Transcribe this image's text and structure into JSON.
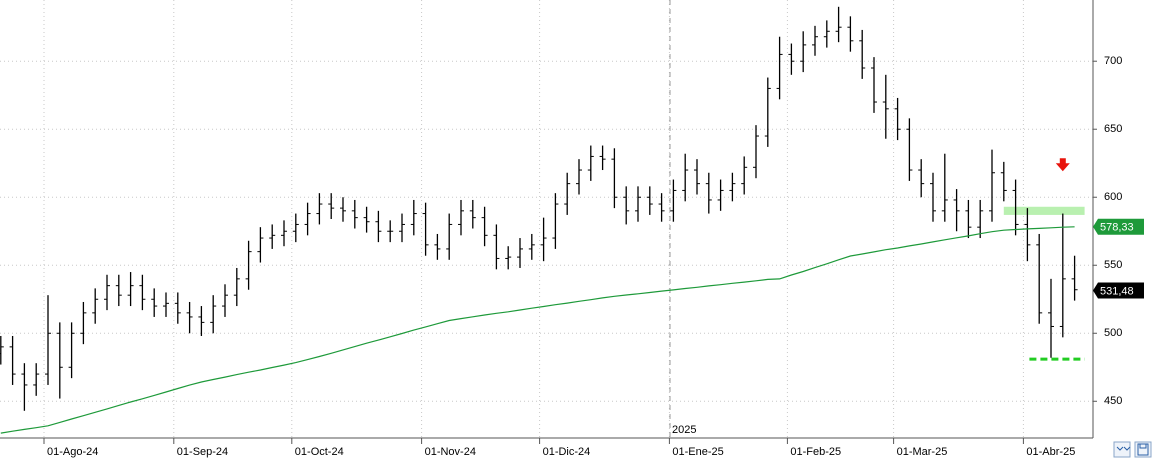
{
  "chart_data": {
    "type": "ohlc",
    "ylim": [
      423,
      745
    ],
    "yticks": [
      450,
      500,
      550,
      600,
      650,
      700
    ],
    "grid": true,
    "bar_color": "#000000",
    "categories": [
      null,
      null,
      null,
      null,
      "01-Ago-24",
      null,
      null,
      null,
      null,
      null,
      null,
      null,
      null,
      null,
      null,
      "01-Sep-24",
      null,
      null,
      null,
      null,
      null,
      null,
      null,
      null,
      null,
      "01-Oct-24",
      null,
      null,
      null,
      null,
      null,
      null,
      null,
      null,
      null,
      null,
      "01-Nov-24",
      null,
      null,
      null,
      null,
      null,
      null,
      null,
      null,
      null,
      "01-Dic-24",
      null,
      null,
      null,
      null,
      null,
      null,
      null,
      null,
      null,
      null,
      "01-Ene-25",
      null,
      null,
      null,
      null,
      null,
      null,
      null,
      null,
      null,
      "01-Feb-25",
      null,
      null,
      null,
      null,
      null,
      null,
      null,
      null,
      "01-Mar-25",
      null,
      null,
      null,
      null,
      null,
      null,
      null,
      null,
      null,
      null,
      "01-Abr-25",
      null,
      null,
      null,
      null
    ],
    "year_label": "2025",
    "ohlc": {
      "open": [
        485,
        490,
        470,
        462,
        470,
        500,
        475,
        500,
        515,
        525,
        535,
        528,
        535,
        525,
        520,
        522,
        515,
        512,
        508,
        520,
        528,
        540,
        560,
        570,
        572,
        575,
        580,
        588,
        595,
        592,
        590,
        585,
        582,
        575,
        575,
        580,
        588,
        565,
        562,
        580,
        590,
        585,
        572,
        555,
        556,
        562,
        565,
        570,
        595,
        610,
        620,
        630,
        628,
        600,
        590,
        600,
        595,
        590,
        605,
        620,
        610,
        598,
        605,
        610,
        622,
        645,
        680,
        705,
        700,
        712,
        718,
        722,
        725,
        715,
        695,
        670,
        665,
        650,
        620,
        610,
        590,
        598,
        590,
        578,
        590,
        618,
        605,
        580,
        565,
        515,
        505,
        540
      ],
      "high": [
        498,
        498,
        478,
        478,
        528,
        508,
        508,
        523,
        533,
        543,
        543,
        545,
        543,
        533,
        530,
        530,
        523,
        520,
        528,
        536,
        548,
        568,
        578,
        580,
        583,
        588,
        596,
        603,
        603,
        600,
        598,
        593,
        590,
        583,
        588,
        598,
        596,
        573,
        588,
        598,
        598,
        593,
        580,
        564,
        570,
        573,
        585,
        603,
        618,
        628,
        638,
        638,
        636,
        608,
        608,
        608,
        603,
        613,
        632,
        628,
        618,
        613,
        618,
        630,
        653,
        688,
        718,
        713,
        722,
        726,
        730,
        740,
        733,
        723,
        703,
        690,
        673,
        658,
        628,
        618,
        632,
        606,
        598,
        598,
        635,
        626,
        613,
        592,
        573,
        540,
        588,
        557
      ],
      "low": [
        477,
        462,
        443,
        454,
        462,
        452,
        467,
        492,
        507,
        517,
        520,
        520,
        517,
        512,
        512,
        507,
        500,
        498,
        500,
        512,
        520,
        532,
        552,
        562,
        564,
        567,
        572,
        580,
        584,
        582,
        577,
        574,
        567,
        567,
        567,
        572,
        557,
        554,
        554,
        572,
        577,
        564,
        547,
        547,
        548,
        554,
        553,
        562,
        587,
        602,
        612,
        620,
        592,
        580,
        582,
        587,
        582,
        582,
        597,
        602,
        588,
        590,
        597,
        602,
        614,
        637,
        672,
        690,
        692,
        704,
        710,
        714,
        707,
        687,
        662,
        643,
        642,
        612,
        600,
        582,
        582,
        575,
        570,
        570,
        582,
        597,
        572,
        553,
        507,
        482,
        497,
        524
      ],
      "close": [
        490,
        470,
        462,
        470,
        500,
        475,
        500,
        515,
        525,
        535,
        528,
        535,
        525,
        520,
        522,
        515,
        512,
        508,
        520,
        528,
        540,
        560,
        570,
        572,
        575,
        580,
        588,
        595,
        592,
        590,
        585,
        582,
        575,
        575,
        580,
        588,
        565,
        562,
        580,
        590,
        585,
        572,
        555,
        556,
        562,
        565,
        570,
        595,
        610,
        620,
        630,
        628,
        600,
        590,
        600,
        595,
        590,
        605,
        620,
        610,
        598,
        605,
        610,
        622,
        645,
        680,
        705,
        700,
        712,
        718,
        722,
        725,
        715,
        695,
        670,
        665,
        650,
        620,
        610,
        590,
        598,
        590,
        578,
        590,
        618,
        605,
        580,
        565,
        515,
        505,
        540,
        532
      ]
    },
    "moving_average": {
      "color": "#1e9a3a",
      "values": [
        426.6,
        428,
        429.3,
        430.6,
        432,
        434.5,
        437,
        439.4,
        441.9,
        444.4,
        447,
        449.5,
        451.8,
        454.3,
        456.8,
        459.4,
        461.9,
        464.2,
        466,
        467.8,
        469.6,
        471.4,
        473,
        474.8,
        476.6,
        478.4,
        480.6,
        482.9,
        485.3,
        487.8,
        490.2,
        492.7,
        495,
        497.4,
        499.8,
        502.3,
        504.7,
        507,
        509.4,
        510.8,
        512.1,
        513.4,
        514.7,
        515.8,
        517.1,
        518.4,
        519.7,
        521,
        522.2,
        523.5,
        524.7,
        526,
        527.2,
        528.1,
        529,
        530,
        531,
        531.9,
        532.9,
        533.8,
        534.8,
        535.7,
        536.7,
        537.6,
        538.6,
        539.6,
        540,
        542.8,
        545.4,
        548.3,
        551.1,
        554,
        556.8,
        558.3,
        559.8,
        561.4,
        562.7,
        564.2,
        565.6,
        567.2,
        568.7,
        570.2,
        571.6,
        573.2,
        574.7,
        575.8,
        576.3,
        576.7,
        577.1,
        577.5,
        578,
        578.3
      ]
    },
    "price_tags": [
      {
        "value": 578.33,
        "label": "578,33",
        "color": "#1e9a3a"
      },
      {
        "value": 531.48,
        "label": "531,48",
        "color": "#000000"
      }
    ],
    "resistance_band": {
      "range": [
        587,
        593
      ],
      "color": "#b9f0b0"
    },
    "support_line": {
      "value": 481,
      "color": "#22cc22"
    },
    "signal_arrow": {
      "value": 622,
      "color": "#e8140c"
    }
  }
}
